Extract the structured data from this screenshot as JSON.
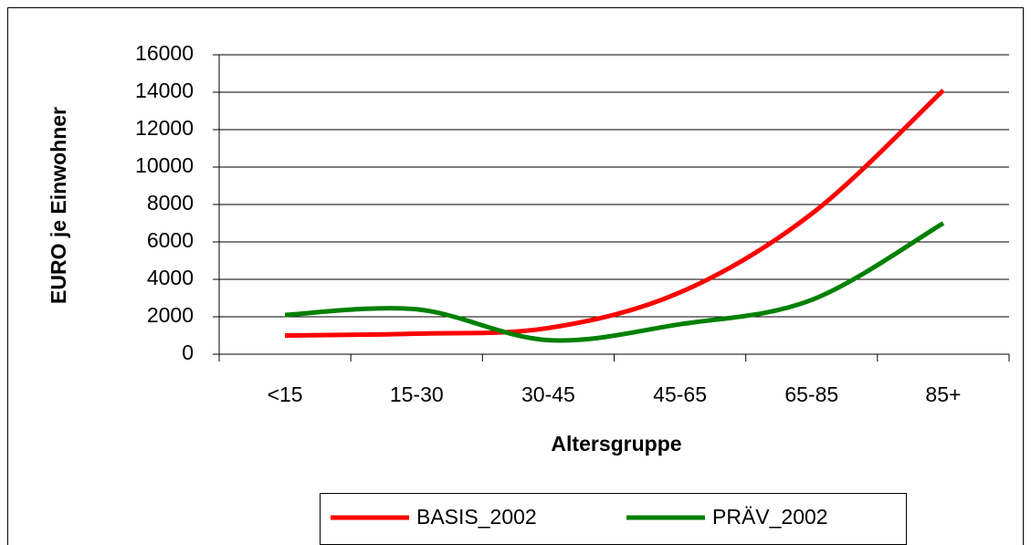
{
  "chart_data": {
    "type": "line",
    "categories": [
      "<15",
      "15-30",
      "30-45",
      "45-65",
      "65-85",
      "85+"
    ],
    "series": [
      {
        "name": "BASIS_2002",
        "color": "#ff0000",
        "values": [
          1000,
          1100,
          1400,
          3300,
          7500,
          14100
        ]
      },
      {
        "name": "PRÄV_2002",
        "color": "#008000",
        "values": [
          2100,
          2400,
          750,
          1600,
          2900,
          7000
        ]
      }
    ],
    "ylim": [
      0,
      16000
    ],
    "yticks": [
      0,
      2000,
      4000,
      6000,
      8000,
      10000,
      12000,
      14000,
      16000
    ],
    "xlabel": "Altersgruppe",
    "ylabel": "EURO je Einwohner",
    "grid": true,
    "legend": "bottom"
  }
}
